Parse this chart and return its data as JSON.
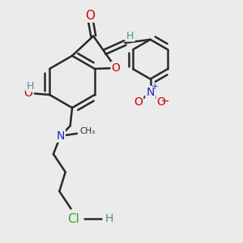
{
  "bg_color": "#ebebeb",
  "bond_color": "#2a2a2a",
  "bond_width": 1.8,
  "figsize": [
    3.0,
    3.0
  ],
  "dpi": 100,
  "colors": {
    "bond": "#2a2a2a",
    "O": "#cc0000",
    "N": "#2222cc",
    "H": "#4d9090",
    "Cl": "#33aa33",
    "C": "#2a2a2a"
  }
}
